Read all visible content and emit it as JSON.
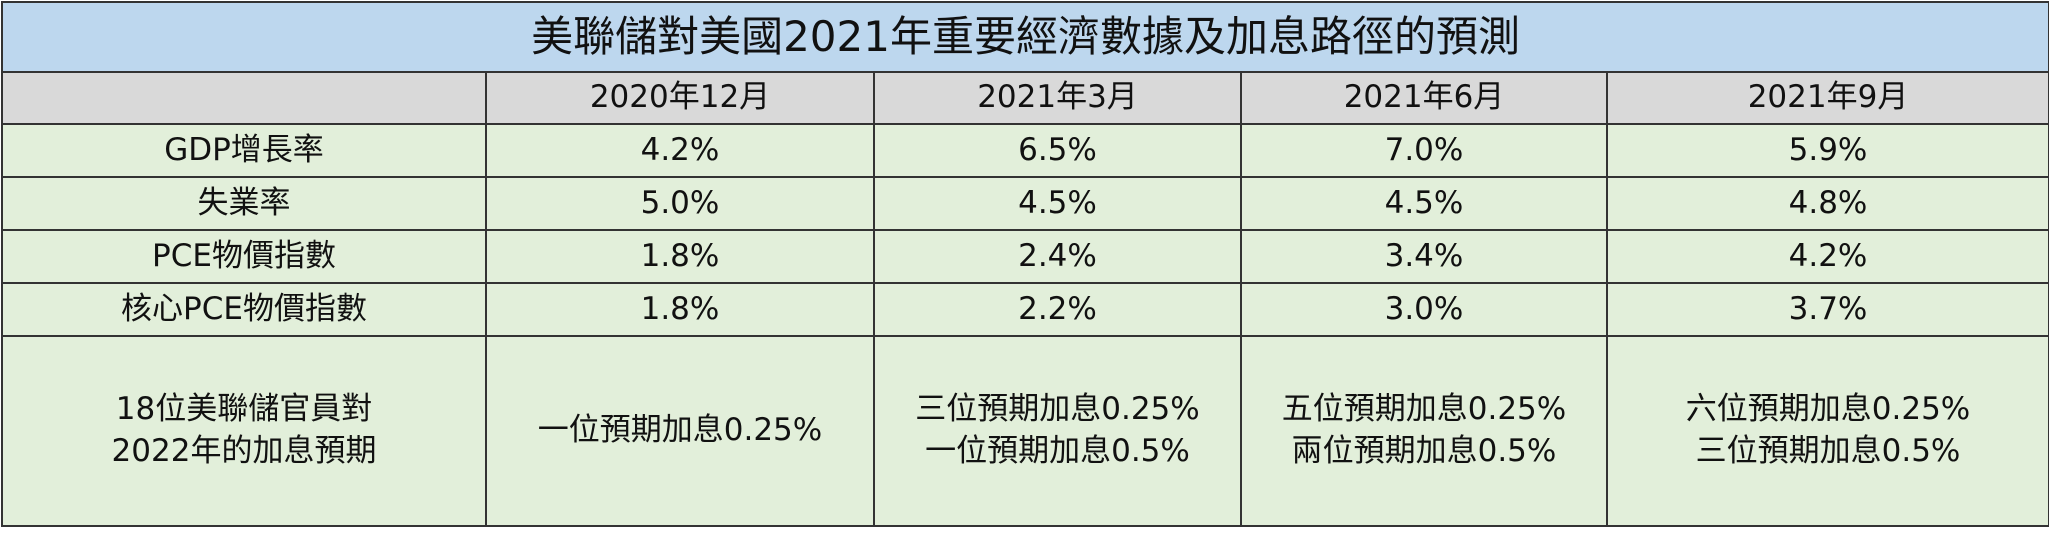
{
  "table": {
    "title": "美聯儲對美國2021年重要經濟數據及加息路徑的預測",
    "header": [
      "",
      "2020年12月",
      "2021年3月",
      "2021年6月",
      "2021年9月"
    ],
    "rows": [
      [
        "GDP增長率",
        "4.2%",
        "6.5%",
        "7.0%",
        "5.9%"
      ],
      [
        "失業率",
        "5.0%",
        "4.5%",
        "4.5%",
        "4.8%"
      ],
      [
        "PCE物價指數",
        "1.8%",
        "2.4%",
        "3.4%",
        "4.2%"
      ],
      [
        "核心PCE物價指數",
        "1.8%",
        "2.2%",
        "3.0%",
        "3.7%"
      ],
      [
        [
          "18位美聯儲官員對",
          "2022年的加息預期"
        ],
        [
          "一位預期加息0.25%"
        ],
        [
          "三位預期加息0.25%",
          "一位預期加息0.5%"
        ],
        [
          "五位預期加息0.25%",
          "兩位預期加息0.5%"
        ],
        [
          "六位預期加息0.25%",
          "三位預期加息0.5%"
        ]
      ]
    ]
  }
}
